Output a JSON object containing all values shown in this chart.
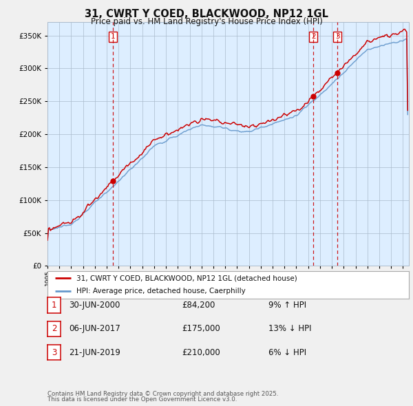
{
  "title": "31, CWRT Y COED, BLACKWOOD, NP12 1GL",
  "subtitle": "Price paid vs. HM Land Registry's House Price Index (HPI)",
  "ylim": [
    0,
    370000
  ],
  "yticks": [
    0,
    50000,
    100000,
    150000,
    200000,
    250000,
    300000,
    350000
  ],
  "xlim_start": 1995.0,
  "xlim_end": 2025.5,
  "line1_color": "#cc0000",
  "line2_color": "#6699cc",
  "plot_bg_color": "#ddeeff",
  "transaction_color": "#cc0000",
  "transaction_dates": [
    2000.5,
    2017.44,
    2019.47
  ],
  "transaction_labels": [
    "1",
    "2",
    "3"
  ],
  "transaction_prices": [
    84200,
    175000,
    210000
  ],
  "transaction_texts": [
    "30-JUN-2000",
    "06-JUN-2017",
    "21-JUN-2019"
  ],
  "transaction_pct": [
    "9% ↑ HPI",
    "13% ↓ HPI",
    "6% ↓ HPI"
  ],
  "legend_line1": "31, CWRT Y COED, BLACKWOOD, NP12 1GL (detached house)",
  "legend_line2": "HPI: Average price, detached house, Caerphilly",
  "footer1": "Contains HM Land Registry data © Crown copyright and database right 2025.",
  "footer2": "This data is licensed under the Open Government Licence v3.0.",
  "background_color": "#f0f0f0",
  "grid_color": "#aabbcc"
}
